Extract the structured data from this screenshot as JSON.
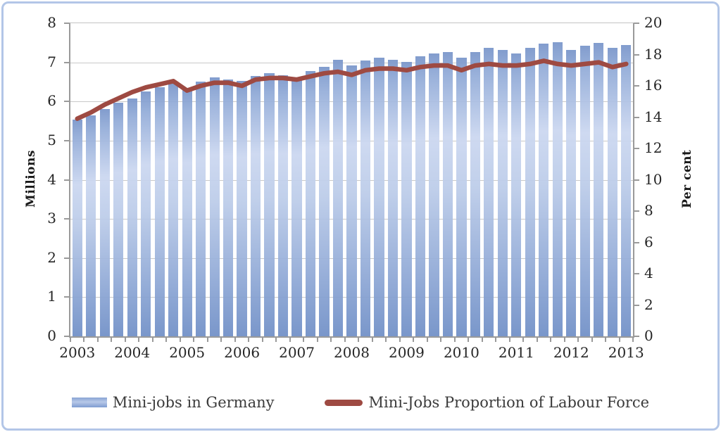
{
  "chart_data": {
    "type": "combo-bar-line",
    "categories": [
      "2003 Q1",
      "2003 Q2",
      "2003 Q3",
      "2003 Q4",
      "2004 Q1",
      "2004 Q2",
      "2004 Q3",
      "2004 Q4",
      "2005 Q1",
      "2005 Q2",
      "2005 Q3",
      "2005 Q4",
      "2006 Q1",
      "2006 Q2",
      "2006 Q3",
      "2006 Q4",
      "2007 Q1",
      "2007 Q2",
      "2007 Q3",
      "2007 Q4",
      "2008 Q1",
      "2008 Q2",
      "2008 Q3",
      "2008 Q4",
      "2009 Q1",
      "2009 Q2",
      "2009 Q3",
      "2009 Q4",
      "2010 Q1",
      "2010 Q2",
      "2010 Q3",
      "2010 Q4",
      "2011 Q1",
      "2011 Q2",
      "2011 Q3",
      "2011 Q4",
      "2012 Q1",
      "2012 Q2",
      "2012 Q3",
      "2012 Q4",
      "2013 Q1"
    ],
    "x_year_labels": [
      "2003",
      "2004",
      "2005",
      "2006",
      "2007",
      "2008",
      "2009",
      "2010",
      "2011",
      "2012",
      "2013"
    ],
    "series": [
      {
        "name": "Mini-jobs in Germany",
        "type": "bar",
        "axis": "left",
        "unit": "millions",
        "color": "#7e9cd0",
        "values": [
          5.53,
          5.65,
          5.8,
          5.97,
          6.07,
          6.25,
          6.37,
          6.47,
          6.32,
          6.5,
          6.62,
          6.57,
          6.52,
          6.65,
          6.72,
          6.67,
          6.62,
          6.77,
          6.88,
          7.07,
          6.92,
          7.05,
          7.12,
          7.07,
          7.02,
          7.15,
          7.22,
          7.27,
          7.12,
          7.27,
          7.37,
          7.32,
          7.22,
          7.37,
          7.47,
          7.52,
          7.32,
          7.42,
          7.5,
          7.38,
          7.45
        ]
      },
      {
        "name": "Mini-Jobs Proportion of Labour Force",
        "type": "line",
        "axis": "right",
        "unit": "per cent",
        "color": "#9e4a42",
        "values": [
          13.9,
          14.3,
          14.8,
          15.2,
          15.6,
          15.9,
          16.1,
          16.3,
          15.7,
          16.0,
          16.2,
          16.2,
          16.0,
          16.4,
          16.5,
          16.5,
          16.4,
          16.6,
          16.8,
          16.9,
          16.7,
          17.0,
          17.1,
          17.1,
          17.0,
          17.2,
          17.3,
          17.3,
          17.0,
          17.3,
          17.4,
          17.3,
          17.3,
          17.4,
          17.6,
          17.4,
          17.3,
          17.4,
          17.5,
          17.2,
          17.4
        ]
      }
    ],
    "left_axis": {
      "title": "Millions",
      "min": 0,
      "max": 8,
      "tick_step": 1,
      "ticks": [
        0,
        1,
        2,
        3,
        4,
        5,
        6,
        7,
        8
      ]
    },
    "right_axis": {
      "title": "Per cent",
      "min": 0,
      "max": 20,
      "tick_step": 2,
      "ticks": [
        0,
        2,
        4,
        6,
        8,
        10,
        12,
        14,
        16,
        18,
        20
      ]
    },
    "grid": "horizontal",
    "legend_position": "bottom"
  },
  "legend": {
    "bar_label": "Mini-jobs in Germany",
    "line_label": "Mini-Jobs Proportion of Labour Force"
  },
  "colors": {
    "bar_gradient_top": "#7a96ca",
    "bar_gradient_light": "#cbd7f0",
    "bar_gradient_bottom": "#7190c7",
    "line": "#9e4a42",
    "gridline": "#c8c8c8",
    "axis_line": "#9a9a9a",
    "frame_border": "#b3c6e7",
    "text": "#262626"
  }
}
